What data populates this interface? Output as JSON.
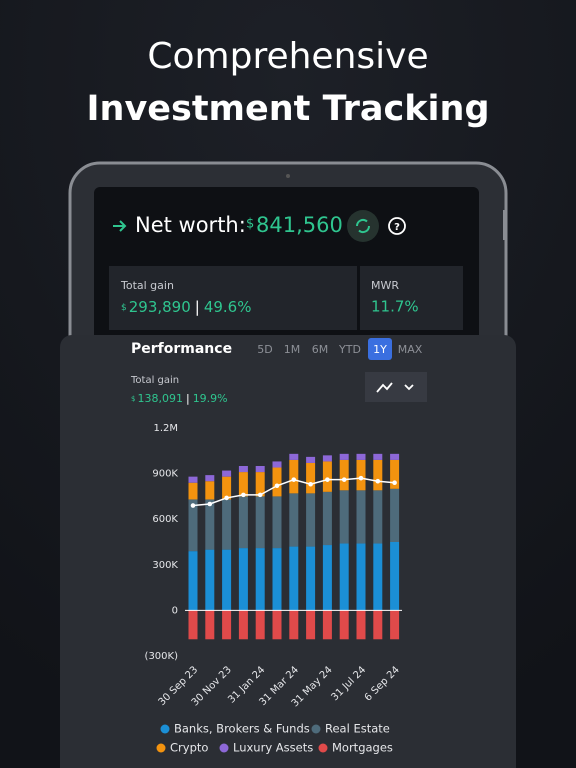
{
  "header": {
    "line1": "Comprehensive",
    "line2": "Investment Tracking"
  },
  "summary": {
    "label": "Net worth:",
    "currency": "$",
    "value": "841,560",
    "total_gain": {
      "label": "Total gain",
      "currency": "$",
      "value": "293,890",
      "separator": "|",
      "percent": "49.6%"
    },
    "mwr": {
      "label": "MWR",
      "value": "11.7%"
    }
  },
  "performance": {
    "title": "Performance",
    "periods": [
      "5D",
      "1M",
      "6M",
      "YTD",
      "1Y",
      "MAX"
    ],
    "selected": "1Y",
    "total_gain": {
      "label": "Total gain",
      "currency": "$",
      "value": "138,091",
      "separator": "|",
      "percent": "19.9%"
    }
  },
  "chart_data": {
    "type": "bar",
    "stacked": true,
    "categories": [
      "30 Sep 23",
      null,
      "30 Nov 23",
      null,
      "31 Jan 24",
      null,
      "31 Mar 24",
      null,
      "31 May 24",
      null,
      "31 Jul 24",
      null,
      "6 Sep 24"
    ],
    "series": [
      {
        "name": "Banks, Brokers & Funds",
        "color": "#1b8fd6",
        "values": [
          390000,
          400000,
          400000,
          410000,
          410000,
          410000,
          420000,
          420000,
          430000,
          440000,
          440000,
          440000,
          450000
        ]
      },
      {
        "name": "Real Estate",
        "color": "#4e6b7b",
        "values": [
          340000,
          330000,
          330000,
          340000,
          340000,
          340000,
          350000,
          350000,
          350000,
          350000,
          350000,
          350000,
          350000
        ]
      },
      {
        "name": "Crypto",
        "color": "#f3930f",
        "values": [
          110000,
          120000,
          150000,
          160000,
          160000,
          190000,
          220000,
          200000,
          200000,
          200000,
          200000,
          200000,
          190000
        ]
      },
      {
        "name": "Luxury Assets",
        "color": "#8d68d8",
        "values": [
          40000,
          40000,
          40000,
          40000,
          40000,
          40000,
          40000,
          40000,
          40000,
          40000,
          40000,
          40000,
          40000
        ]
      },
      {
        "name": "Mortgages",
        "color": "#e04a4a",
        "values": [
          -190000,
          -190000,
          -190000,
          -190000,
          -190000,
          -190000,
          -190000,
          -190000,
          -190000,
          -190000,
          -190000,
          -190000,
          -190000
        ]
      }
    ],
    "line": {
      "color": "#ffffff",
      "values": [
        690000,
        700000,
        740000,
        760000,
        760000,
        820000,
        860000,
        830000,
        860000,
        860000,
        870000,
        850000,
        840000
      ]
    },
    "ylim": [
      -300000,
      1200000
    ],
    "yticks": [
      {
        "value": -300000,
        "label": "(300K)"
      },
      0,
      {
        "value": 300000,
        "label": "300K"
      },
      {
        "value": 600000,
        "label": "600K"
      },
      {
        "value": 900000,
        "label": "900K"
      },
      {
        "value": 1200000,
        "label": "1.2M"
      }
    ],
    "grid": false
  }
}
